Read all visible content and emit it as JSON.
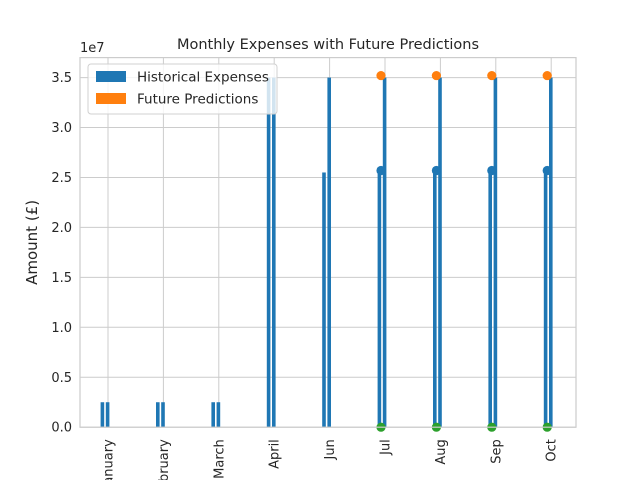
{
  "chart_data": {
    "type": "bar",
    "title": "Monthly Expenses with Future Predictions",
    "ylabel": "Amount (£)",
    "xlabel": "",
    "y_scale_label": "1e7",
    "ylim": [
      0,
      37000000
    ],
    "yticks": [
      0,
      5000000,
      10000000,
      15000000,
      20000000,
      25000000,
      30000000,
      35000000
    ],
    "ytick_labels": [
      "0.0",
      "0.5",
      "1.0",
      "1.5",
      "2.0",
      "2.5",
      "3.0",
      "3.5"
    ],
    "categories": [
      "January",
      "February",
      "March",
      "April",
      "Jun",
      "Jul",
      "Aug",
      "Sep",
      "Oct"
    ],
    "grid": true,
    "legend": {
      "placement": "top-left",
      "entries": [
        {
          "label": "Historical Expenses",
          "color": "#1f77b4"
        },
        {
          "label": "Future Predictions",
          "color": "#ff7f0e"
        }
      ]
    },
    "series": [
      {
        "values": [
          2500000,
          2500000,
          2500000,
          35000000,
          25500000,
          25600000,
          25600000,
          25600000,
          25600000
        ],
        "color": "#1f77b4"
      },
      {
        "values": [
          2500000,
          2500000,
          2500000,
          35000000,
          35000000,
          35000000,
          35000000,
          35000000,
          35000000
        ],
        "color": "#1f77b4"
      }
    ],
    "points": [
      {
        "name": "orange",
        "color": "#ff7f0e",
        "x": [
          "Jul",
          "Aug",
          "Sep",
          "Oct"
        ],
        "y": [
          35200000,
          35200000,
          35200000,
          35200000
        ]
      },
      {
        "name": "blue",
        "color": "#1f77b4",
        "x": [
          "Jul",
          "Aug",
          "Sep",
          "Oct"
        ],
        "y": [
          25700000,
          25700000,
          25700000,
          25700000
        ]
      },
      {
        "name": "green",
        "color": "#2ca02c",
        "x": [
          "Jul",
          "Aug",
          "Sep",
          "Oct"
        ],
        "y": [
          0,
          0,
          0,
          0
        ]
      }
    ]
  }
}
